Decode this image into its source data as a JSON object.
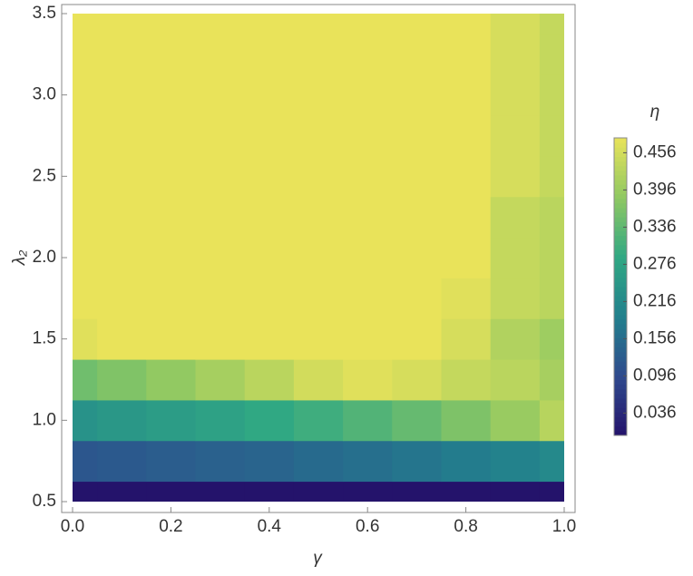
{
  "chart_data": {
    "type": "contour",
    "xlabel": "γ",
    "ylabel": "λ₂",
    "colorbar_label": "η",
    "x": [
      0,
      0.1,
      0.2,
      0.3,
      0.4,
      0.5,
      0.6,
      0.7,
      0.8,
      0.9,
      1
    ],
    "y": [
      0.5,
      0.75,
      1,
      1.25,
      1.5,
      1.75,
      2,
      2.25,
      2.5,
      2.75,
      3,
      3.25,
      3.5
    ],
    "z": [
      [
        0,
        0,
        0,
        0,
        0,
        0,
        0,
        0,
        0,
        0,
        0
      ],
      [
        0.118,
        0.123,
        0.129,
        0.136,
        0.143,
        0.152,
        0.161,
        0.172,
        0.184,
        0.197,
        0.214
      ],
      [
        0.235,
        0.246,
        0.258,
        0.272,
        0.287,
        0.303,
        0.322,
        0.343,
        0.367,
        0.395,
        0.427
      ],
      [
        0.353,
        0.369,
        0.387,
        0.408,
        0.43,
        0.455,
        0.47,
        0.46,
        0.44,
        0.43,
        0.41
      ],
      [
        0.47,
        0.48,
        0.48,
        0.48,
        0.48,
        0.48,
        0.48,
        0.48,
        0.46,
        0.42,
        0.4
      ],
      [
        0.48,
        0.48,
        0.48,
        0.48,
        0.48,
        0.48,
        0.48,
        0.48,
        0.47,
        0.44,
        0.43
      ],
      [
        0.48,
        0.48,
        0.48,
        0.48,
        0.48,
        0.48,
        0.48,
        0.48,
        0.48,
        0.44,
        0.43
      ],
      [
        0.48,
        0.48,
        0.48,
        0.48,
        0.48,
        0.48,
        0.48,
        0.48,
        0.48,
        0.44,
        0.43
      ],
      [
        0.48,
        0.48,
        0.48,
        0.48,
        0.48,
        0.48,
        0.48,
        0.48,
        0.48,
        0.46,
        0.44
      ],
      [
        0.48,
        0.48,
        0.48,
        0.48,
        0.48,
        0.48,
        0.48,
        0.48,
        0.48,
        0.46,
        0.44
      ],
      [
        0.48,
        0.48,
        0.48,
        0.48,
        0.48,
        0.48,
        0.48,
        0.48,
        0.48,
        0.46,
        0.44
      ],
      [
        0.48,
        0.48,
        0.48,
        0.48,
        0.48,
        0.48,
        0.48,
        0.48,
        0.48,
        0.46,
        0.44
      ],
      [
        0.48,
        0.48,
        0.48,
        0.48,
        0.48,
        0.48,
        0.48,
        0.48,
        0.48,
        0.46,
        0.44
      ]
    ],
    "xlim": [
      0,
      1
    ],
    "xticks": [
      {
        "value": 0,
        "label": "0.0"
      },
      0.2,
      0.4,
      0.6,
      0.8,
      {
        "value": 1,
        "label": "1.0"
      }
    ],
    "ylim": [
      0.5,
      3.5
    ],
    "yticks": [
      0.5,
      {
        "value": 1,
        "label": "1.0"
      },
      1.5,
      {
        "value": 2,
        "label": "2.0"
      },
      2.5,
      {
        "value": 3,
        "label": "3.0"
      },
      3.5
    ],
    "clim": [
      0,
      0.48
    ],
    "cticks": [
      0.036,
      0.096,
      0.156,
      0.216,
      0.276,
      0.336,
      0.396,
      0.456
    ],
    "colormap": [
      "#24136b",
      "#2f4a8d",
      "#22808d",
      "#30a883",
      "#8fc862",
      "#e9e35a"
    ]
  }
}
